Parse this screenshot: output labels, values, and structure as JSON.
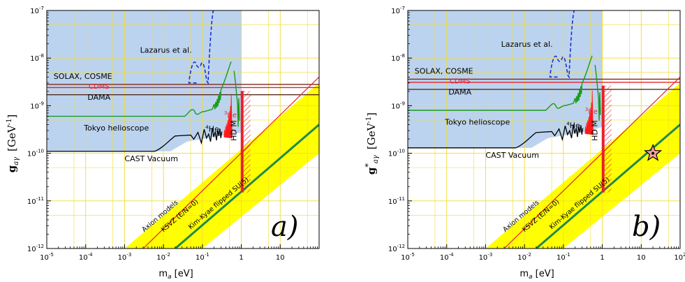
{
  "colors": {
    "excluded_fill": "#bcd3ef",
    "band_fill": "#ffff00",
    "grid": "#f0dc32",
    "kim_kyae_line": "#1f8a4a",
    "ksvz_line": "#e8202a",
    "cast_line": "#000000",
    "tokyo_line": "#1a9a1a",
    "lazarus_line": "#1a2fd0",
    "solax_line": "#7a2a1a",
    "cdms_line": "#e8202a",
    "dama_line": "#5a2a1a",
    "he3_fill": "#ff1a1a",
    "hdm_color": "#e8202a",
    "star_fill": "#f6a0a0"
  },
  "chart_data": [
    {
      "panel": "a)",
      "type": "line",
      "xlabel": "m_a [eV]",
      "ylabel": "g_aγ [GeV^-1]",
      "ylabel_base": "g",
      "ylabel_sub": "aγ",
      "ylabel_sup": "",
      "ylabel_unit": "[GeV",
      "ylabel_unit_sup": "-1",
      "ylabel_unit_close": "]",
      "xlim": [
        1e-05,
        100
      ],
      "ylim": [
        1e-12,
        1e-07
      ],
      "x_ticks": [
        "10-5",
        "10-4",
        "10-3",
        "10-2",
        "10-1",
        "1",
        "10"
      ],
      "y_ticks": [
        "10-12",
        "10-11",
        "10-10",
        "10-9",
        "10-8",
        "10-7"
      ],
      "labels": {
        "lazarus": "Lazarus et al.",
        "solax": "SOLAX, COSME",
        "cdms": "CDMS",
        "dama": "DAMA",
        "tokyo": "Tokyo helioscope",
        "he4_sup": "4",
        "he4": "He",
        "he3_sup": "3",
        "he3": "He",
        "cast": "CAST Vacuum",
        "hdm": "HD M",
        "axion_models": "Axion models",
        "ksvz": "KSVZ (E/N=0)",
        "kim_kyae": "Kim-Kyae flipped SU(5)"
      },
      "limits": {
        "solax_g": 2.8e-09,
        "cdms_g": 2.4e-09,
        "dama_g": 1.7e-09,
        "cast_plateau_g": 1.1e-10,
        "tokyo_plateau_g": 6e-10,
        "lazarus_plateau_g": 3e-09
      },
      "models": {
        "band_upper": {
          "x": [
            0.001,
            100
          ],
          "y": [
            1e-12,
            3e-09
          ]
        },
        "band_lower": {
          "x": [
            0.1,
            100
          ],
          "y": [
            1e-12,
            1e-10
          ]
        },
        "ksvz": {
          "x": [
            0.003,
            100
          ],
          "y": [
            1e-12,
            4e-09
          ]
        },
        "kim_kyae": {
          "x": [
            0.02,
            100
          ],
          "y": [
            1e-12,
            4e-10
          ]
        }
      }
    },
    {
      "panel": "b)",
      "type": "line",
      "xlabel": "m_a [eV]",
      "ylabel": "g*_aγ [GeV^-1]",
      "ylabel_base": "g",
      "ylabel_sub": "aγ",
      "ylabel_sup": "*",
      "ylabel_unit": "[GeV",
      "ylabel_unit_sup": "-1",
      "ylabel_unit_close": "]",
      "xlim": [
        1e-05,
        100
      ],
      "ylim": [
        1e-12,
        1e-07
      ],
      "x_ticks": [
        "10-5",
        "10-4",
        "10-3",
        "10-2",
        "10-1",
        "1",
        "10",
        "102"
      ],
      "y_ticks": [
        "10-12",
        "10-11",
        "10-10",
        "10-9",
        "10-8",
        "10-7"
      ],
      "labels": {
        "lazarus": "Lazarus et al.",
        "solax": "SOLAX, COSME",
        "cdms": "CDMS",
        "dama": "DAMA",
        "tokyo": "Tokyo helioscope",
        "he4_sup": "4",
        "he4": "He",
        "he3_sup": "3",
        "he3": "He",
        "cast": "CAST Vacuum",
        "hdm": "HD M",
        "axion_models": "Axion models",
        "ksvz": "KSVZ (E/N=0)",
        "kim_kyae": "Kim-Kyae flipped SU(5)"
      },
      "limits": {
        "solax_g": 3.6e-09,
        "cdms_g": 3.1e-09,
        "dama_g": 2.2e-09,
        "cast_plateau_g": 1.3e-10,
        "tokyo_plateau_g": 8e-10,
        "lazarus_plateau_g": 4e-09
      },
      "models": {
        "band_upper": {
          "x": [
            0.001,
            100
          ],
          "y": [
            1e-12,
            3e-09
          ]
        },
        "band_lower": {
          "x": [
            0.1,
            100
          ],
          "y": [
            1e-12,
            1e-10
          ]
        },
        "ksvz": {
          "x": [
            0.003,
            100
          ],
          "y": [
            1e-12,
            4e-09
          ]
        },
        "kim_kyae": {
          "x": [
            0.02,
            100
          ],
          "y": [
            1e-12,
            4e-10
          ]
        }
      },
      "marker": {
        "shape": "star",
        "x": 20,
        "y": 1e-10
      }
    }
  ]
}
